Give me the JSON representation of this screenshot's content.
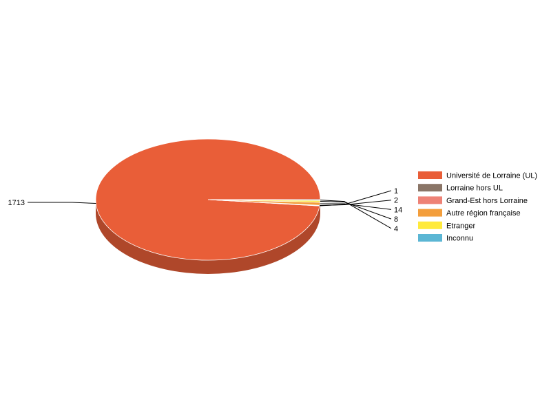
{
  "chart_data": {
    "type": "pie",
    "style": "3d",
    "categories": [
      "Université de Lorraine (UL)",
      "Lorraine hors UL",
      "Grand-Est hors Lorraine",
      "Autre région française",
      "Etranger",
      "Inconnu"
    ],
    "values": [
      1713,
      1,
      2,
      14,
      8,
      4
    ],
    "colors": [
      "#e95e38",
      "#8a7567",
      "#ee8276",
      "#f39e3c",
      "#ffea3c",
      "#5bb6d4"
    ],
    "data_labels": [
      "1713",
      "1",
      "2",
      "14",
      "8",
      "4"
    ],
    "legend_position": "right"
  }
}
